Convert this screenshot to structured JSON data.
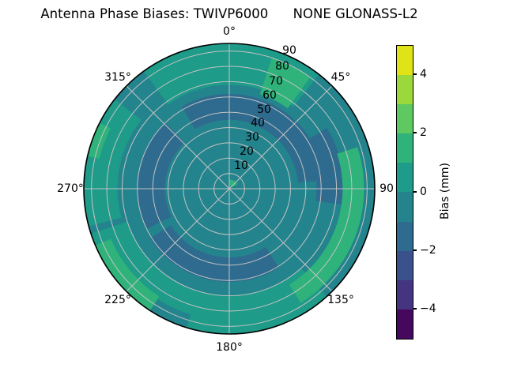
{
  "chart_data": {
    "type": "polar_contour",
    "title": "Antenna Phase Biases: TWIVP6000      NONE GLONASS-L2",
    "theta_direction": "clockwise",
    "theta_zero": "north",
    "theta_tick_labels": [
      "0°",
      "45°",
      "90",
      "135°",
      "180°",
      "225°",
      "270°",
      "315°"
    ],
    "r_tick_labels": [
      "10",
      "20",
      "30",
      "40",
      "50",
      "60",
      "70",
      "80",
      "90"
    ],
    "r_tick_values": [
      10,
      20,
      30,
      40,
      50,
      60,
      70,
      80,
      90
    ],
    "r_max": 95,
    "grid_color": "#c3c3c3",
    "outline_color": "#000000",
    "base_color": "#24848d",
    "base_value_range": [
      -1,
      0
    ],
    "regions": [
      {
        "name": "outer-ring-west",
        "color": "#1e9b89",
        "value_range": [
          0,
          1
        ],
        "theta": [
          255,
          308
        ],
        "r": [
          73,
          95
        ]
      },
      {
        "name": "outer-ring-north",
        "color": "#1e9b89",
        "value_range": [
          0,
          1
        ],
        "theta": [
          324,
          38
        ],
        "r": [
          68,
          95
        ]
      },
      {
        "name": "outer-ring-south",
        "color": "#1e9b89",
        "value_range": [
          0,
          1
        ],
        "theta": [
          138,
          252
        ],
        "r": [
          70,
          95
        ]
      },
      {
        "name": "rim-notch-south",
        "color": "#24848d",
        "value_range": [
          -1,
          0
        ],
        "theta": [
          197,
          213
        ],
        "r": [
          86,
          95
        ]
      },
      {
        "name": "dark-arc-north",
        "color": "#2e6b8e",
        "value_range": [
          -2,
          -1
        ],
        "theta": [
          330,
          85
        ],
        "r": [
          45,
          62
        ]
      },
      {
        "name": "dark-arc-west",
        "color": "#2e6b8e",
        "value_range": [
          -2,
          -1
        ],
        "theta": [
          244,
          316
        ],
        "r": [
          42,
          60
        ]
      },
      {
        "name": "dark-arc-south",
        "color": "#2e6b8e",
        "value_range": [
          -2,
          -1
        ],
        "theta": [
          148,
          238
        ],
        "r": [
          45,
          61
        ]
      },
      {
        "name": "dark-arc-east",
        "color": "#2e6b8e",
        "value_range": [
          -2,
          -1
        ],
        "theta": [
          58,
          98
        ],
        "r": [
          57,
          75
        ]
      },
      {
        "name": "green-patch-north",
        "color": "#2fb37b",
        "value_range": [
          1,
          2
        ],
        "theta": [
          18,
          36
        ],
        "r": [
          65,
          90
        ]
      },
      {
        "name": "green-patch-east",
        "color": "#2fb37b",
        "value_range": [
          1,
          2
        ],
        "theta": [
          72,
          148
        ],
        "r": [
          74,
          88
        ]
      },
      {
        "name": "green-patch-southwest",
        "color": "#2fb37b",
        "value_range": [
          1,
          2
        ],
        "theta": [
          213,
          247
        ],
        "r": [
          84,
          95
        ]
      },
      {
        "name": "green-patch-northwest",
        "color": "#2fb37b",
        "value_range": [
          1,
          2
        ],
        "theta": [
          283,
          297
        ],
        "r": [
          87,
          95
        ]
      },
      {
        "name": "green-dot-center",
        "color": "#2fb37b",
        "value_range": [
          1,
          2
        ],
        "theta": [
          0,
          60
        ],
        "r": [
          2,
          6
        ]
      }
    ],
    "colorbar": {
      "label": "Bias (mm)",
      "vmin": -5,
      "vmax": 5,
      "tick_values": [
        4,
        2,
        0,
        -2,
        -4
      ],
      "tick_labels": [
        "4",
        "2",
        "0",
        "−2",
        "−4"
      ],
      "colors_top_to_bottom": [
        "#dfe318",
        "#9ad83c",
        "#5ec961",
        "#2fb37b",
        "#1e9b89",
        "#24848d",
        "#2e6b8e",
        "#3a528b",
        "#45347f",
        "#46085c"
      ]
    }
  }
}
